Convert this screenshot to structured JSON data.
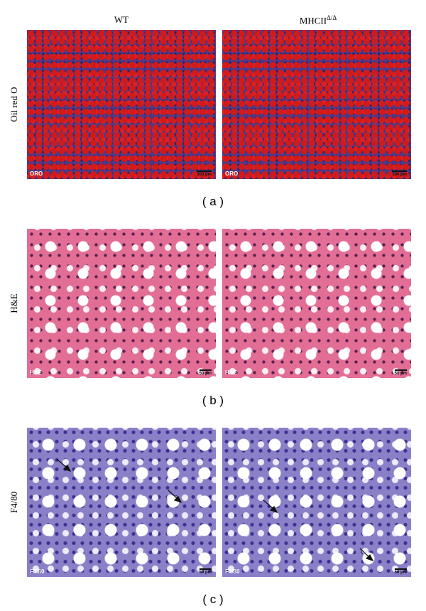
{
  "column_headers": [
    {
      "text": "WT"
    },
    {
      "text": "MHCII",
      "superscript": "Δ/Δ"
    }
  ],
  "rows": [
    {
      "label": "Oil red O",
      "caption": "( a )",
      "panels": [
        {
          "stain": "ORO",
          "scale": "100 μm"
        },
        {
          "stain": "ORO",
          "scale": "100 μm"
        }
      ]
    },
    {
      "label": "H&E",
      "caption": "( b )",
      "panels": [
        {
          "stain": "H&E",
          "scale": "50 μm"
        },
        {
          "stain": "H&E",
          "scale": "50 μm"
        }
      ]
    },
    {
      "label": "F4/80",
      "caption": "( c )",
      "panels": [
        {
          "stain": "F4/80",
          "scale": "50 μm"
        },
        {
          "stain": "F4/80",
          "scale": "50 μm"
        }
      ]
    }
  ]
}
